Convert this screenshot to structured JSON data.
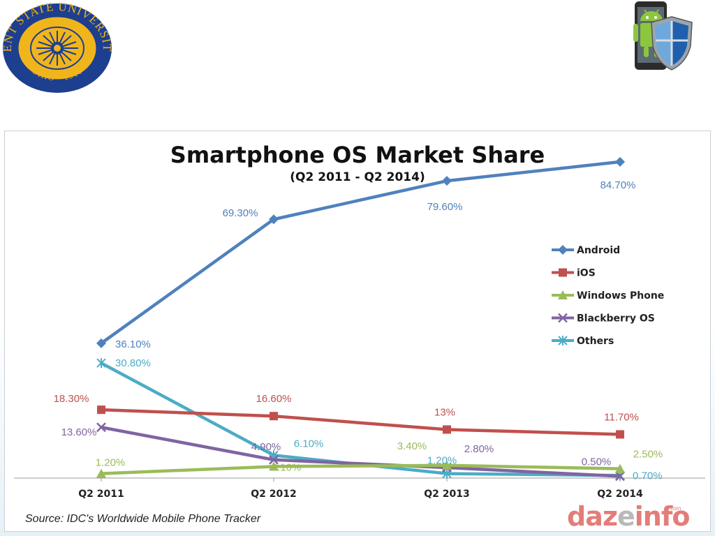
{
  "seal": {
    "text": "KENT STATE UNIVERSITY",
    "lower_text": "OHIO · 1910",
    "colors": {
      "ring": "#1d3f8f",
      "field": "#f1b51c"
    }
  },
  "android_logo": {
    "icon": "android-shield-icon"
  },
  "chart_data": {
    "type": "line",
    "title": "Smartphone OS Market Share",
    "subtitle": "(Q2 2011 - Q2 2014)",
    "categories": [
      "Q2 2011",
      "Q2 2012",
      "Q2 2013",
      "Q2 2014"
    ],
    "ylim": [
      0,
      100
    ],
    "grid": false,
    "legend_position": "right",
    "series": [
      {
        "name": "Android",
        "values": [
          36.1,
          69.3,
          79.6,
          84.7
        ],
        "labels": [
          "36.10%",
          "69.30%",
          "79.60%",
          "84.70%"
        ],
        "color": "#4f81bd",
        "marker": "diamond"
      },
      {
        "name": "iOS",
        "values": [
          18.3,
          16.6,
          13.0,
          11.7
        ],
        "labels": [
          "18.30%",
          "16.60%",
          "13%",
          "11.70%"
        ],
        "color": "#c0504d",
        "marker": "square"
      },
      {
        "name": "Windows Phone",
        "values": [
          1.2,
          3.1,
          3.4,
          2.5
        ],
        "labels": [
          "1.20%",
          "3.10%",
          "3.40%",
          "2.50%"
        ],
        "color": "#9bbb59",
        "marker": "triangle"
      },
      {
        "name": "Blackberry OS",
        "values": [
          13.6,
          4.9,
          2.8,
          0.5
        ],
        "labels": [
          "13.60%",
          "4.90%",
          "2.80%",
          "0.50%"
        ],
        "color": "#8064a2",
        "marker": "x"
      },
      {
        "name": "Others",
        "values": [
          30.8,
          6.1,
          1.2,
          0.7
        ],
        "labels": [
          "30.80%",
          "6.10%",
          "1.20%",
          "0.70%"
        ],
        "color": "#4bacc6",
        "marker": "star"
      }
    ]
  },
  "source": "Source: IDC's Worldwide Mobile Phone Tracker",
  "brand": {
    "part1": "daz",
    "part2": "e",
    "part3": "info",
    "suffix": ".com"
  }
}
